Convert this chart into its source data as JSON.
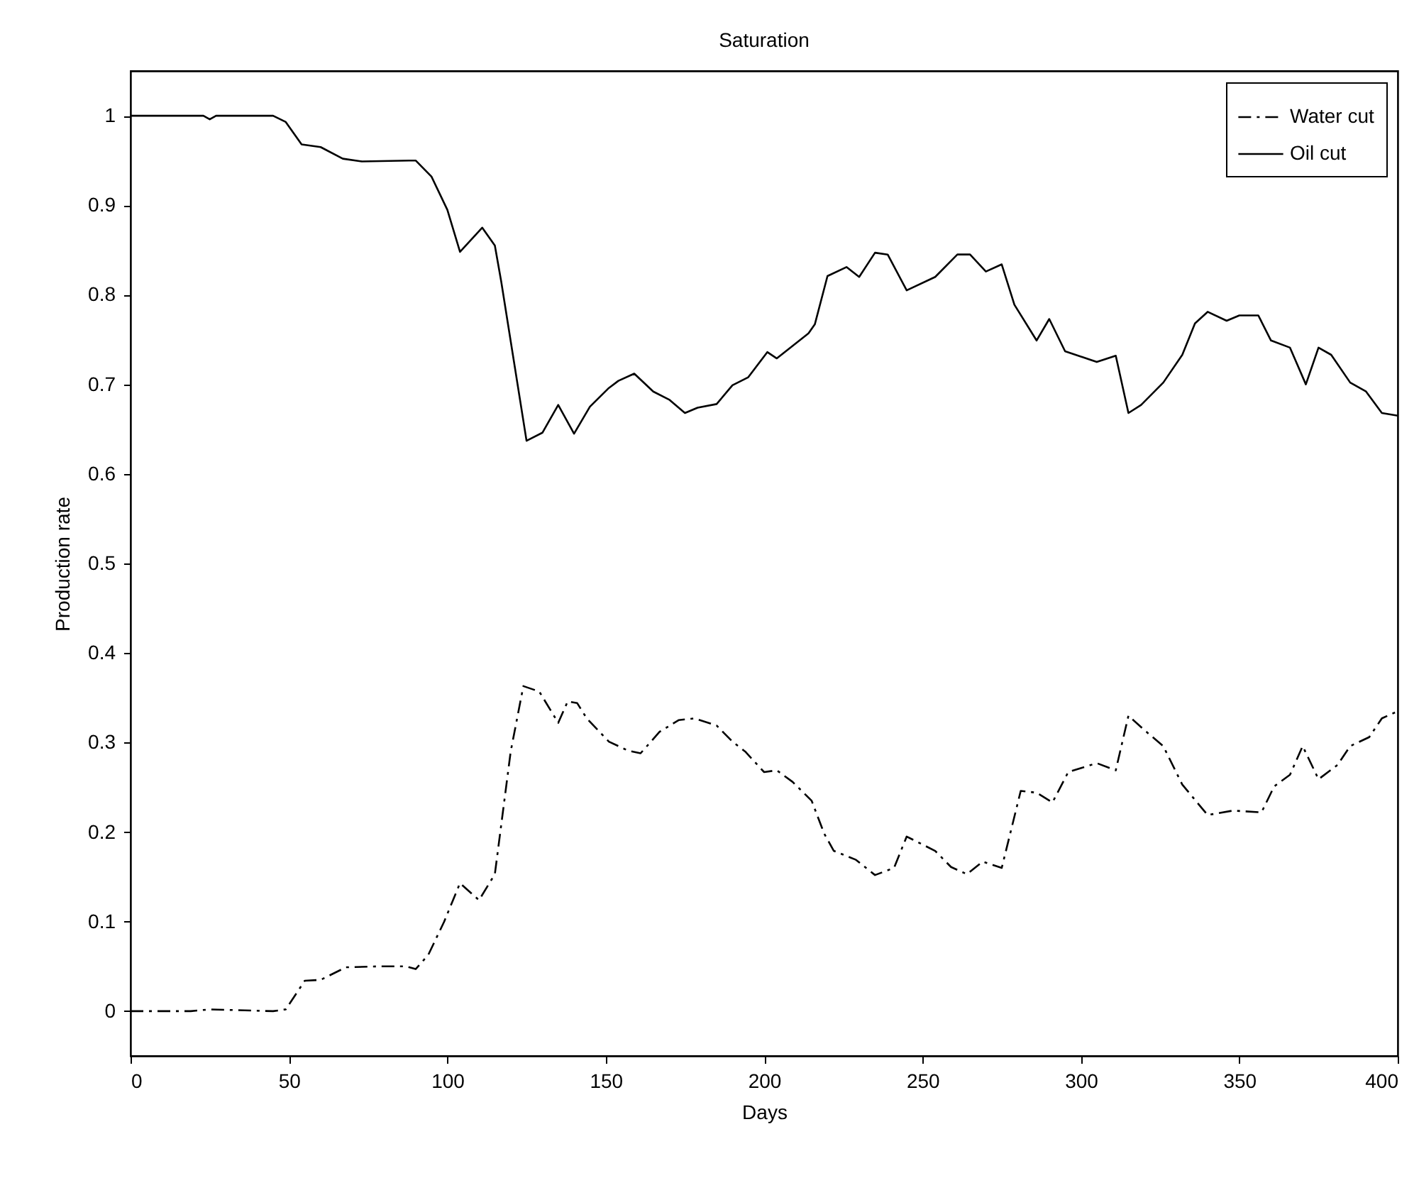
{
  "chart_data": {
    "type": "line",
    "title": "Saturation",
    "xlabel": "Days",
    "ylabel": "Production rate",
    "xlim": [
      0,
      400
    ],
    "ylim": [
      -0.05,
      1.05
    ],
    "xticks": [
      0,
      50,
      100,
      150,
      200,
      250,
      300,
      350,
      400
    ],
    "yticks": [
      0,
      0.1,
      0.2,
      0.3,
      0.4,
      0.5,
      0.6,
      0.7,
      0.8,
      0.9,
      1
    ],
    "grid": false,
    "legend": "top right",
    "marker": "none",
    "series": [
      {
        "name": "Water cut",
        "color": "#000000",
        "line_style": "dashed",
        "x": [
          0,
          19,
          25,
          45,
          49,
          55,
          60,
          68,
          78,
          87,
          90,
          94,
          99,
          104,
          110,
          115,
          120,
          124,
          129,
          135,
          138,
          141,
          144,
          151,
          157,
          161,
          167,
          173,
          178,
          185,
          190,
          194,
          200,
          204,
          209,
          215,
          219,
          222,
          229,
          235,
          241,
          245,
          254,
          259,
          264,
          269,
          275,
          281,
          286,
          291,
          296,
          305,
          311,
          315,
          320,
          326,
          332,
          340,
          348,
          357,
          361,
          366,
          370,
          375,
          381,
          385,
          391,
          395,
          400
        ],
        "values": [
          0,
          0,
          0.002,
          0,
          0.002,
          0.034,
          0.035,
          0.049,
          0.05,
          0.05,
          0.047,
          0.063,
          0.1,
          0.143,
          0.124,
          0.153,
          0.29,
          0.363,
          0.357,
          0.322,
          0.346,
          0.344,
          0.327,
          0.301,
          0.291,
          0.288,
          0.312,
          0.325,
          0.327,
          0.319,
          0.301,
          0.29,
          0.267,
          0.269,
          0.256,
          0.235,
          0.198,
          0.179,
          0.169,
          0.152,
          0.16,
          0.195,
          0.179,
          0.161,
          0.153,
          0.167,
          0.16,
          0.246,
          0.244,
          0.233,
          0.267,
          0.277,
          0.269,
          0.33,
          0.314,
          0.296,
          0.253,
          0.219,
          0.224,
          0.222,
          0.251,
          0.264,
          0.296,
          0.259,
          0.275,
          0.296,
          0.306,
          0.327,
          0.335
        ]
      },
      {
        "name": "Oil cut",
        "color": "#000000",
        "line_style": "solid",
        "x": [
          0,
          23,
          25,
          27,
          45,
          49,
          54,
          60,
          67,
          73,
          88,
          90,
          95,
          100,
          104,
          111,
          115,
          117,
          125,
          130,
          135,
          140,
          145,
          151,
          154,
          159,
          165,
          170,
          175,
          179,
          185,
          190,
          195,
          201,
          204,
          214,
          216,
          220,
          226,
          230,
          235,
          239,
          245,
          254,
          261,
          265,
          270,
          275,
          279,
          286,
          290,
          295,
          305,
          311,
          315,
          319,
          326,
          332,
          336,
          340,
          346,
          350,
          356,
          360,
          366,
          371,
          375,
          379,
          385,
          390,
          395,
          400
        ],
        "values": [
          1,
          1,
          0.996,
          1,
          1,
          0.993,
          0.968,
          0.965,
          0.952,
          0.949,
          0.95,
          0.95,
          0.932,
          0.895,
          0.848,
          0.875,
          0.855,
          0.815,
          0.637,
          0.646,
          0.677,
          0.645,
          0.675,
          0.696,
          0.704,
          0.712,
          0.692,
          0.683,
          0.668,
          0.674,
          0.678,
          0.699,
          0.708,
          0.736,
          0.729,
          0.757,
          0.767,
          0.821,
          0.831,
          0.82,
          0.847,
          0.845,
          0.805,
          0.82,
          0.845,
          0.845,
          0.826,
          0.834,
          0.789,
          0.749,
          0.773,
          0.737,
          0.725,
          0.732,
          0.668,
          0.677,
          0.702,
          0.733,
          0.768,
          0.781,
          0.771,
          0.777,
          0.777,
          0.749,
          0.741,
          0.7,
          0.741,
          0.733,
          0.702,
          0.692,
          0.668,
          0.665
        ]
      }
    ]
  }
}
